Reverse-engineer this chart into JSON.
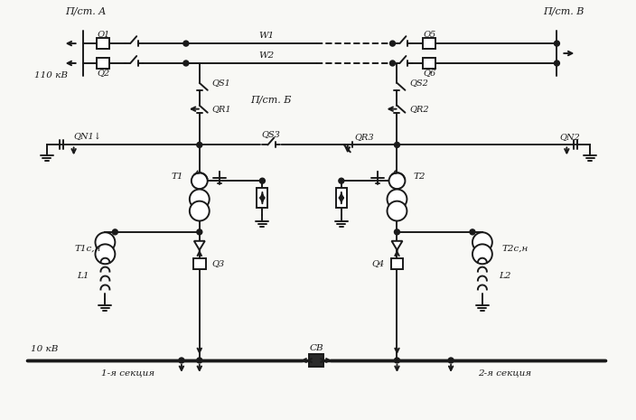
{
  "bg_color": "#f8f8f5",
  "lc": "#1a1a1a",
  "lw": 1.4,
  "labels": {
    "pst_A": "П/ст. A",
    "pst_B": "П/ст. В",
    "pst_Bl": "П/ст. Б",
    "Q1": "Q1",
    "Q2": "Q2",
    "Q5": "Q5",
    "Q6": "Q6",
    "Q3": "Q3",
    "Q4": "Q4",
    "QS1": "QS1",
    "QS2": "QS2",
    "QS3": "QS3",
    "QR1": "QR1",
    "QR2": "QR2",
    "QR3": "QR3",
    "QN1": "QN1↓",
    "QN2": "QN2",
    "W1": "W1",
    "W2": "W2",
    "T1": "T1",
    "T2": "T2",
    "T1sn": "T1с,н",
    "T2sn": "T2с,н",
    "L1": "L1",
    "L2": "L2",
    "CB": "СВ",
    "v110": "110 кВ",
    "v10": "10 кВ",
    "sec1": "1-я секция",
    "sec2": "2-я секция"
  }
}
